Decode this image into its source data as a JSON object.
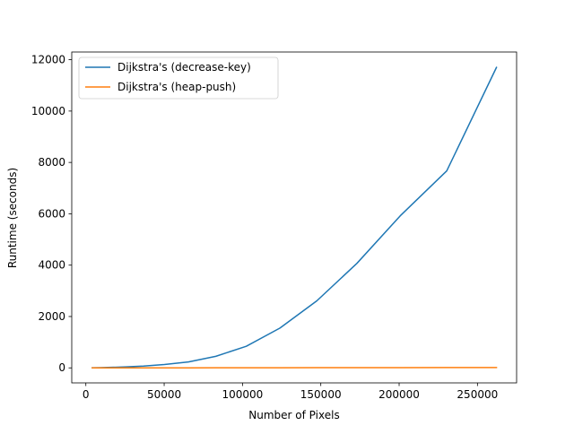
{
  "chart_data": {
    "type": "line",
    "title": "",
    "xlabel": "Number of Pixels",
    "ylabel": "Runtime (seconds)",
    "xlim": [
      -9000,
      275000
    ],
    "ylim": [
      -585,
      12300
    ],
    "xticks": [
      0,
      50000,
      100000,
      150000,
      200000,
      250000
    ],
    "xtick_labels": [
      "0",
      "50000",
      "100000",
      "150000",
      "200000",
      "250000"
    ],
    "yticks": [
      0,
      2000,
      4000,
      6000,
      8000,
      10000,
      12000
    ],
    "ytick_labels": [
      "0",
      "2000",
      "4000",
      "6000",
      "8000",
      "10000",
      "12000"
    ],
    "grid": false,
    "legend_position": "top-left",
    "series": [
      {
        "name": "Dijkstra's (decrease-key)",
        "color": "#1f77b4",
        "x": [
          4096,
          9216,
          16384,
          25600,
          36864,
          50176,
          65536,
          82944,
          102400,
          123904,
          147456,
          173056,
          200704,
          230400,
          262144
        ],
        "y": [
          3,
          8,
          20,
          38,
          70,
          130,
          230,
          450,
          840,
          1550,
          2610,
          4070,
          5920,
          7670,
          11700
        ]
      },
      {
        "name": "Dijkstra's (heap-push)",
        "color": "#ff7f0e",
        "x": [
          4096,
          9216,
          16384,
          25600,
          36864,
          50176,
          65536,
          82944,
          102400,
          123904,
          147456,
          173056,
          200704,
          230400,
          262144
        ],
        "y": [
          0,
          0,
          1,
          1,
          1,
          2,
          2,
          3,
          4,
          5,
          7,
          8,
          9,
          11,
          13
        ]
      }
    ]
  }
}
